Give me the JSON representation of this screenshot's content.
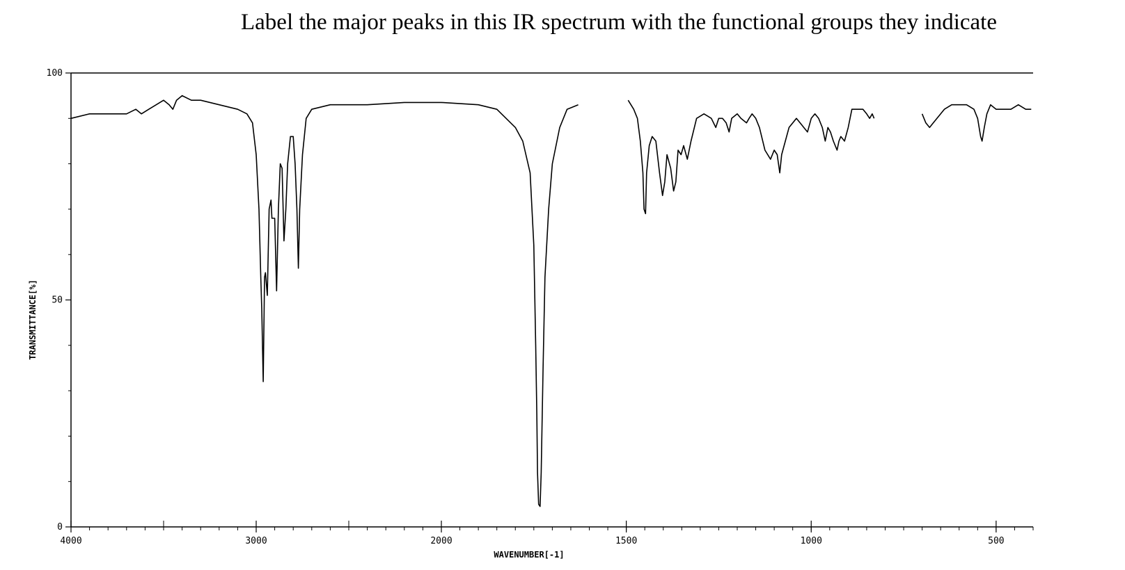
{
  "question": "Label the major peaks in this IR spectrum with the functional groups they indicate",
  "chart_data": {
    "type": "line",
    "title": "",
    "xlabel": "WAVENUMBER[-1]",
    "ylabel": "TRANSMITTANCE[%]",
    "xlim": [
      4000,
      400
    ],
    "ylim": [
      0,
      100
    ],
    "x_reversed": true,
    "grid": false,
    "x_ticks": [
      4000,
      3000,
      2000,
      1500,
      1000,
      500
    ],
    "y_ticks": [
      0,
      50,
      100
    ],
    "line_color": "#000000",
    "series": [
      {
        "points": [
          [
            4000,
            90
          ],
          [
            3900,
            91
          ],
          [
            3800,
            91
          ],
          [
            3700,
            91
          ],
          [
            3650,
            92
          ],
          [
            3620,
            91
          ],
          [
            3580,
            92
          ],
          [
            3540,
            93
          ],
          [
            3500,
            94
          ],
          [
            3470,
            93
          ],
          [
            3450,
            92
          ],
          [
            3430,
            94
          ],
          [
            3400,
            95
          ],
          [
            3350,
            94
          ],
          [
            3300,
            94
          ],
          [
            3200,
            93
          ],
          [
            3100,
            92
          ],
          [
            3050,
            91
          ],
          [
            3020,
            89
          ],
          [
            3000,
            82
          ],
          [
            2985,
            70
          ],
          [
            2975,
            55
          ],
          [
            2970,
            48
          ],
          [
            2962,
            32
          ],
          [
            2955,
            55
          ],
          [
            2950,
            56
          ],
          [
            2940,
            51
          ],
          [
            2930,
            70
          ],
          [
            2920,
            72
          ],
          [
            2915,
            68
          ],
          [
            2900,
            68
          ],
          [
            2890,
            52
          ],
          [
            2880,
            70
          ],
          [
            2870,
            80
          ],
          [
            2860,
            79
          ],
          [
            2850,
            63
          ],
          [
            2840,
            70
          ],
          [
            2830,
            80
          ],
          [
            2815,
            86
          ],
          [
            2800,
            86
          ],
          [
            2790,
            80
          ],
          [
            2780,
            70
          ],
          [
            2772,
            57
          ],
          [
            2765,
            70
          ],
          [
            2750,
            82
          ],
          [
            2730,
            90
          ],
          [
            2700,
            92
          ],
          [
            2600,
            93
          ],
          [
            2500,
            93
          ],
          [
            2400,
            93
          ],
          [
            2200,
            93.5
          ],
          [
            2000,
            93.5
          ],
          [
            1900,
            93
          ],
          [
            1850,
            92
          ],
          [
            1800,
            88
          ],
          [
            1780,
            85
          ],
          [
            1760,
            78
          ],
          [
            1750,
            62
          ],
          [
            1745,
            40
          ],
          [
            1742,
            25
          ],
          [
            1740,
            12
          ],
          [
            1737,
            5
          ],
          [
            1733,
            4.5
          ],
          [
            1730,
            12
          ],
          [
            1725,
            35
          ],
          [
            1720,
            55
          ],
          [
            1710,
            70
          ],
          [
            1700,
            80
          ],
          [
            1680,
            88
          ],
          [
            1660,
            92
          ],
          [
            1630,
            93
          ],
          null,
          [
            1495,
            94
          ],
          [
            1480,
            92
          ],
          [
            1470,
            90
          ],
          [
            1462,
            85
          ],
          [
            1455,
            78
          ],
          [
            1452,
            70
          ],
          [
            1448,
            69
          ],
          [
            1445,
            78
          ],
          [
            1438,
            84
          ],
          [
            1430,
            86
          ],
          [
            1420,
            85
          ],
          [
            1410,
            78
          ],
          [
            1402,
            73
          ],
          [
            1396,
            76
          ],
          [
            1390,
            82
          ],
          [
            1380,
            79
          ],
          [
            1372,
            74
          ],
          [
            1366,
            76
          ],
          [
            1360,
            83
          ],
          [
            1352,
            82
          ],
          [
            1345,
            84
          ],
          [
            1335,
            81
          ],
          [
            1325,
            85
          ],
          [
            1310,
            90
          ],
          [
            1290,
            91
          ],
          [
            1270,
            90
          ],
          [
            1258,
            88
          ],
          [
            1250,
            90
          ],
          [
            1240,
            90
          ],
          [
            1230,
            89
          ],
          [
            1222,
            87
          ],
          [
            1215,
            90
          ],
          [
            1200,
            91
          ],
          [
            1190,
            90
          ],
          [
            1175,
            89
          ],
          [
            1168,
            90
          ],
          [
            1160,
            91
          ],
          [
            1150,
            90
          ],
          [
            1140,
            88
          ],
          [
            1125,
            83
          ],
          [
            1110,
            81
          ],
          [
            1100,
            83
          ],
          [
            1092,
            82
          ],
          [
            1085,
            78
          ],
          [
            1080,
            82
          ],
          [
            1070,
            85
          ],
          [
            1060,
            88
          ],
          [
            1040,
            90
          ],
          [
            1030,
            89
          ],
          [
            1020,
            88
          ],
          [
            1010,
            87
          ],
          [
            1000,
            90
          ],
          [
            990,
            91
          ],
          [
            980,
            90
          ],
          [
            970,
            88
          ],
          [
            962,
            85
          ],
          [
            955,
            88
          ],
          [
            948,
            87
          ],
          [
            940,
            85
          ],
          [
            930,
            83
          ],
          [
            925,
            85
          ],
          [
            920,
            86
          ],
          [
            910,
            85
          ],
          [
            900,
            88
          ],
          [
            890,
            92
          ],
          [
            870,
            92
          ],
          [
            860,
            92
          ],
          [
            850,
            91
          ],
          [
            842,
            90
          ],
          [
            835,
            91
          ],
          [
            830,
            90
          ],
          null,
          [
            700,
            91
          ],
          [
            690,
            89
          ],
          [
            680,
            88
          ],
          [
            670,
            89
          ],
          [
            660,
            90
          ],
          [
            650,
            91
          ],
          [
            640,
            92
          ],
          [
            620,
            93
          ],
          [
            600,
            93
          ],
          [
            580,
            93
          ],
          [
            560,
            92
          ],
          [
            550,
            90
          ],
          [
            542,
            86
          ],
          [
            538,
            85
          ],
          [
            532,
            88
          ],
          [
            525,
            91
          ],
          [
            515,
            93
          ],
          [
            500,
            92
          ],
          [
            480,
            92
          ],
          [
            460,
            92
          ],
          [
            440,
            93
          ],
          [
            420,
            92
          ],
          [
            405,
            92
          ]
        ]
      }
    ]
  }
}
